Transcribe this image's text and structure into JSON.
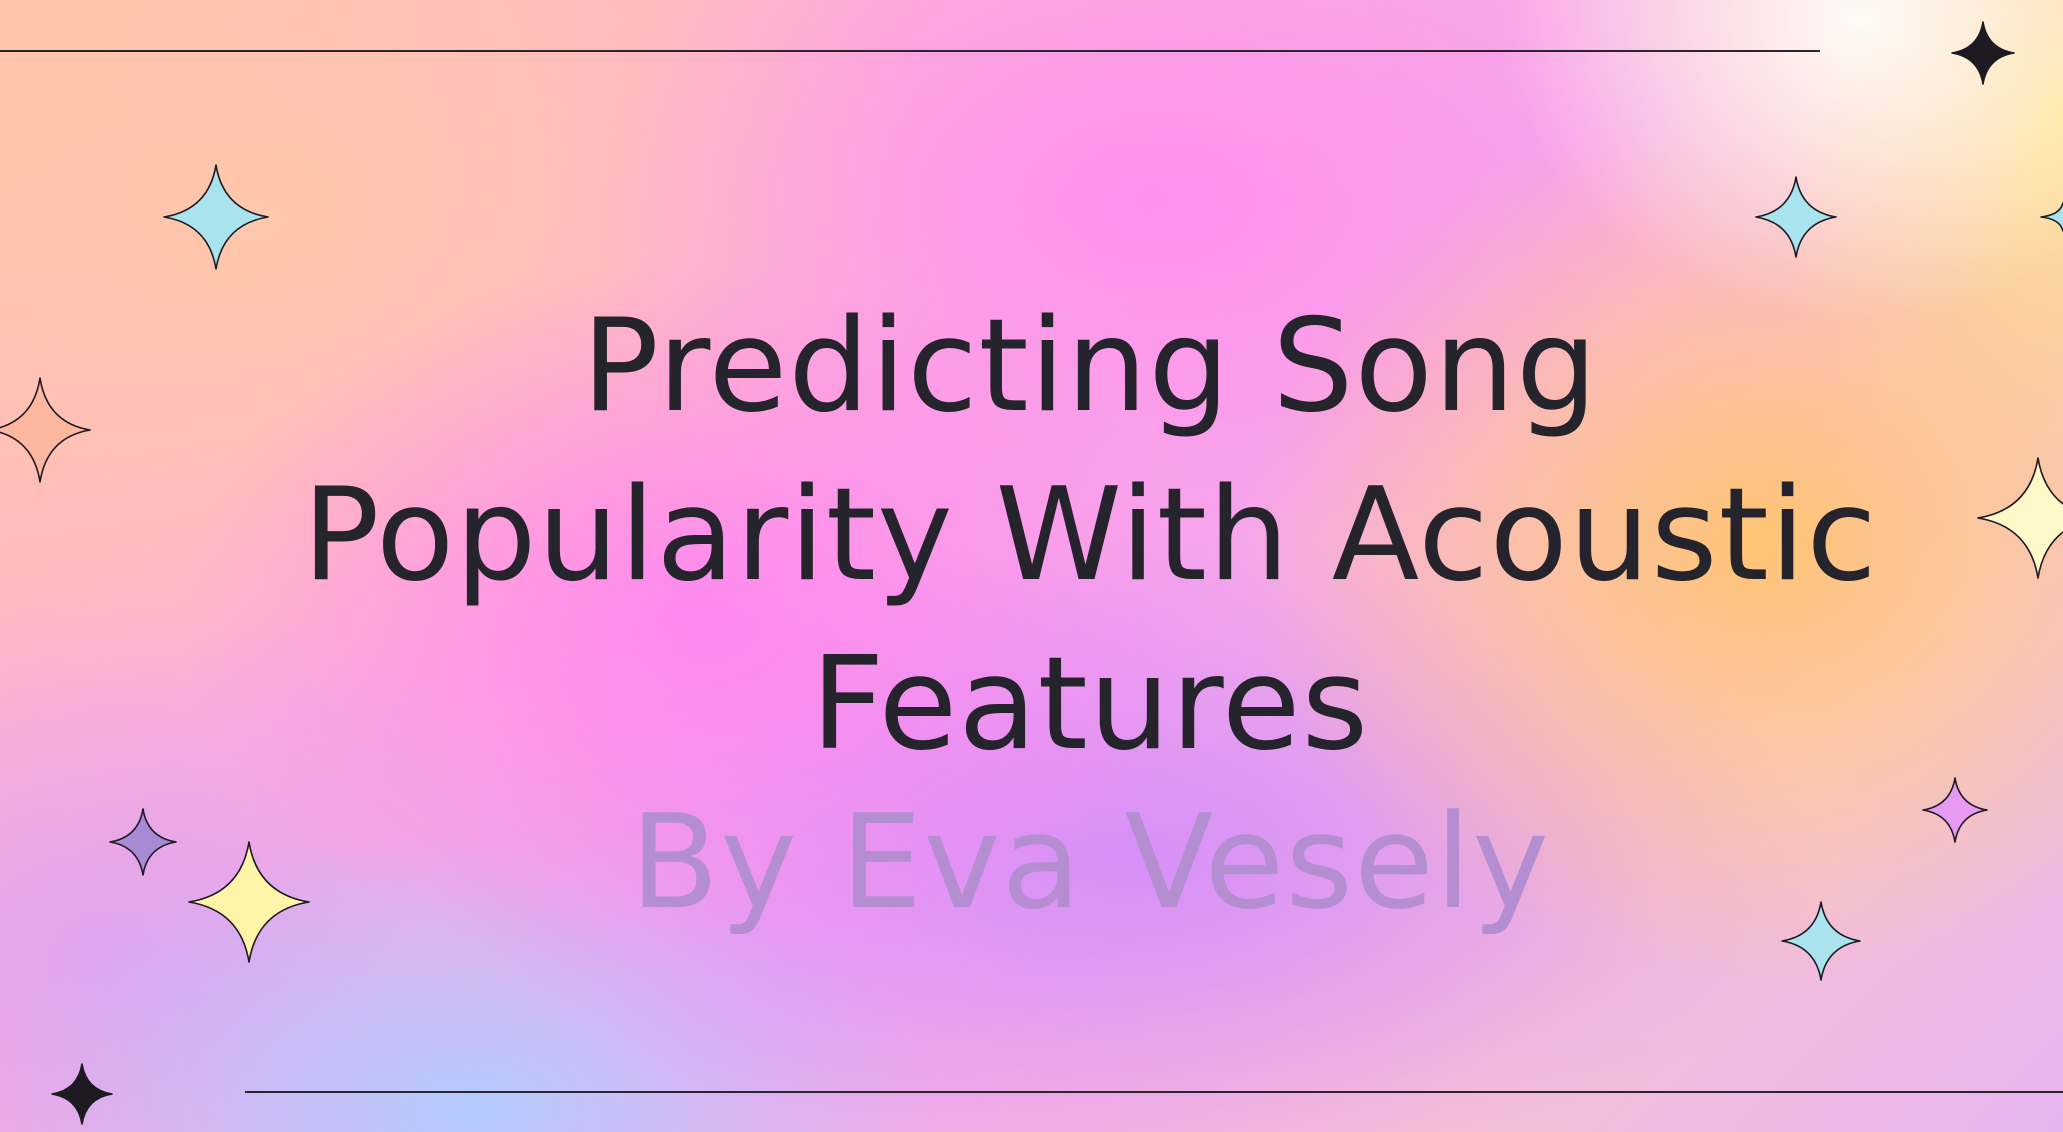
{
  "slide": {
    "title_lines": [
      "Predicting Song",
      "Popularity With Acoustic",
      "Features"
    ],
    "subtitle": "By Eva Vesely"
  },
  "decorations": {
    "sparkle_icon": "four-point-star-icon",
    "sparkle_colors": {
      "cyan": "#a9e3ee",
      "peach": "#ffb8a0",
      "cream": "#fff8c8",
      "yellow": "#fff4a8",
      "lavender": "#a78ad6",
      "pink": "#e79af2",
      "ink": "#1d1a22"
    },
    "rule_color": "#2a2630"
  }
}
